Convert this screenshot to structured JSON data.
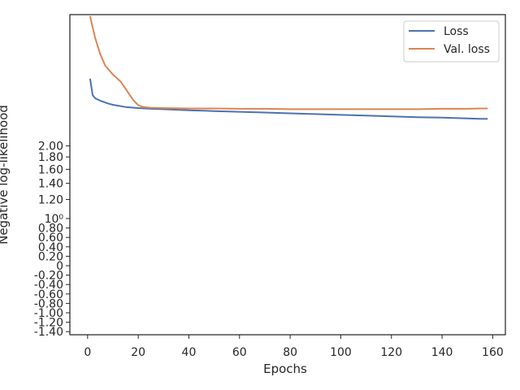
{
  "chart_data": {
    "type": "line",
    "xlabel": "Epochs",
    "ylabel": "Negative log-likelihood",
    "xlim": [
      -7,
      165
    ],
    "xticks": [
      0,
      20,
      40,
      60,
      80,
      100,
      120,
      140,
      160
    ],
    "ylim": [
      -1.45,
      7.0
    ],
    "y_scale": "symlog",
    "ytick_labels": [
      {
        "v": -1.4,
        "label": "-1.40"
      },
      {
        "v": -1.2,
        "label": "-1.20"
      },
      {
        "v": -1.0,
        "label": "-1.00"
      },
      {
        "v": -0.8,
        "label": "-0.80"
      },
      {
        "v": -0.6,
        "label": "-0.60"
      },
      {
        "v": -0.4,
        "label": "-0.40"
      },
      {
        "v": -0.2,
        "label": "-0.20"
      },
      {
        "v": 0,
        "label": "0"
      },
      {
        "v": 0.2,
        "label": "0.20"
      },
      {
        "v": 0.4,
        "label": "0.40"
      },
      {
        "v": 0.6,
        "label": "0.60"
      },
      {
        "v": 0.8,
        "label": "0.80"
      },
      {
        "v": 1.0,
        "label": "10⁰"
      },
      {
        "v": 1.2,
        "label": "1.20"
      },
      {
        "v": 1.4,
        "label": "1.40"
      },
      {
        "v": 1.6,
        "label": "1.60"
      },
      {
        "v": 1.8,
        "label": "1.80"
      },
      {
        "v": 2.0,
        "label": "2.00"
      }
    ],
    "grid": false,
    "legend_position": "top-right",
    "colors": {
      "Loss": "#4c72b0",
      "Val. loss": "#dd8452"
    },
    "series": [
      {
        "name": "Loss",
        "x": [
          1,
          2,
          3,
          5,
          8,
          10,
          15,
          20,
          25,
          30,
          40,
          50,
          60,
          70,
          80,
          90,
          100,
          110,
          120,
          130,
          140,
          150,
          155,
          158
        ],
        "values": [
          3.8,
          3.25,
          3.15,
          3.08,
          3.0,
          2.96,
          2.9,
          2.87,
          2.85,
          2.84,
          2.81,
          2.79,
          2.77,
          2.75,
          2.73,
          2.71,
          2.69,
          2.67,
          2.65,
          2.63,
          2.62,
          2.6,
          2.59,
          2.59
        ]
      },
      {
        "name": "Val. loss",
        "x": [
          1,
          2,
          3,
          5,
          7,
          10,
          13,
          15,
          18,
          20,
          22,
          25,
          30,
          40,
          50,
          60,
          70,
          80,
          90,
          100,
          110,
          120,
          130,
          140,
          145,
          150,
          155,
          158
        ],
        "values": [
          6.9,
          6.2,
          5.6,
          4.8,
          4.3,
          3.95,
          3.7,
          3.45,
          3.1,
          2.95,
          2.9,
          2.88,
          2.87,
          2.86,
          2.86,
          2.85,
          2.85,
          2.84,
          2.84,
          2.84,
          2.84,
          2.84,
          2.84,
          2.85,
          2.85,
          2.85,
          2.86,
          2.86
        ]
      }
    ]
  }
}
